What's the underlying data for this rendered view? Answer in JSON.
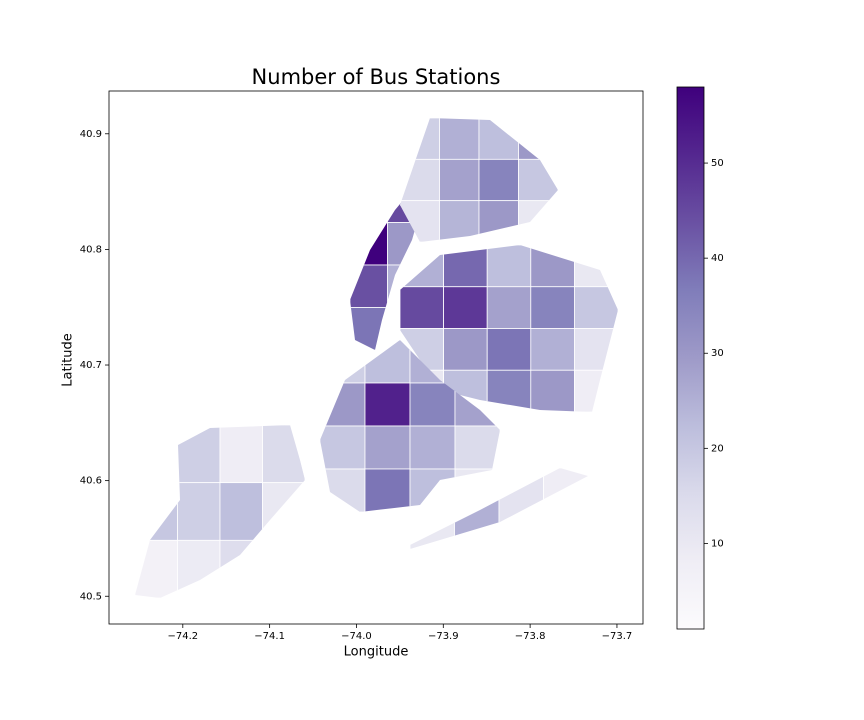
{
  "chart_data": {
    "type": "choropleth",
    "title": "Number of Bus Stations",
    "xlabel": "Longitude",
    "ylabel": "Latitude",
    "xlim": [
      -74.285,
      -73.67
    ],
    "ylim": [
      40.476,
      40.937
    ],
    "xticks": [
      {
        "value": -74.2,
        "label": "−74.2"
      },
      {
        "value": -74.1,
        "label": "−74.1"
      },
      {
        "value": -74.0,
        "label": "−74.0"
      },
      {
        "value": -73.9,
        "label": "−73.9"
      },
      {
        "value": -73.8,
        "label": "−73.8"
      },
      {
        "value": -73.7,
        "label": "−73.7"
      }
    ],
    "yticks": [
      40.5,
      40.6,
      40.7,
      40.8,
      40.9
    ],
    "clim": [
      1,
      58
    ],
    "cticks": [
      10,
      20,
      30,
      40,
      50
    ],
    "colormap": [
      "#fcfbfd",
      "#efedf5",
      "#dadaeb",
      "#bcbddc",
      "#9e9ac8",
      "#807dba",
      "#6a51a3",
      "#54278f",
      "#3f007d"
    ],
    "regions": [
      {
        "values": [
          12,
          18,
          8,
          15,
          20,
          18,
          22,
          10,
          6,
          9,
          14,
          5
        ]
      },
      {
        "values": [
          20,
          45,
          58,
          30,
          44,
          25,
          38,
          15
        ]
      },
      {
        "values": [
          18,
          25,
          22,
          30,
          15,
          28,
          35,
          20,
          12,
          24,
          30,
          10
        ]
      },
      {
        "values": [
          25,
          40,
          22,
          30,
          10,
          45,
          48,
          28,
          35,
          20,
          18,
          30,
          38,
          25,
          12,
          10,
          22,
          35,
          30,
          8
        ]
      },
      {
        "values": [
          18,
          22,
          25,
          20,
          30,
          52,
          35,
          28,
          20,
          28,
          25,
          15,
          15,
          38,
          22,
          10
        ]
      },
      {
        "values": [
          10,
          25,
          12,
          8
        ]
      }
    ]
  }
}
